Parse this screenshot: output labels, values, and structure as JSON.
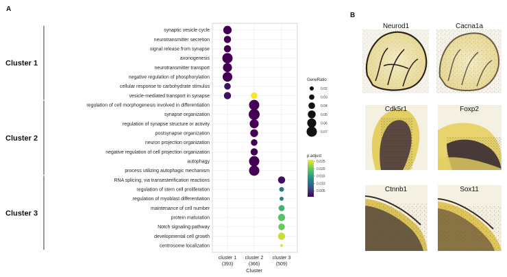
{
  "panel_a_letter": "A",
  "panel_b_letter": "B",
  "chart_data": {
    "type": "scatter",
    "title": "",
    "xlabel": "Cluster",
    "ylabel": "",
    "x_categories": [
      {
        "name": "cluster 1",
        "count": "(393)"
      },
      {
        "name": "cluster 2",
        "count": "(366)"
      },
      {
        "name": "cluster 3",
        "count": "(509)"
      }
    ],
    "terms": [
      "synaptic vesicle cycle",
      "neurotransmitter secretion",
      "signal release from synapse",
      "axonogenesis",
      "neurotransmitter transport",
      "negative regulation of phosphorylation",
      "cellular response to carbohydrate stimulus",
      "vesicle-mediated transport in synapse",
      "regulation of cell morphogenesis involved in differentiation",
      "synapse organization",
      "regulation of synapse structure or activity",
      "postsynapse organization",
      "neuron projection organization",
      "negative regulation of cell projection organization",
      "autophagy",
      "process utilizing autophagic mechanism",
      "RNA splicing, via transesterification reactions",
      "regulation of stem cell proliferation",
      "regulation of myoblast differentiation",
      "maintenance of cell number",
      "protein maturation",
      "Notch signaling pathway",
      "developmental cell growth",
      "centrosome localization"
    ],
    "points": [
      {
        "term": "synaptic vesicle cycle",
        "cluster": "cluster 1",
        "gene_ratio": 0.055,
        "p_adjust": 0.001
      },
      {
        "term": "neurotransmitter secretion",
        "cluster": "cluster 1",
        "gene_ratio": 0.045,
        "p_adjust": 0.001
      },
      {
        "term": "signal release from synapse",
        "cluster": "cluster 1",
        "gene_ratio": 0.045,
        "p_adjust": 0.001
      },
      {
        "term": "axonogenesis",
        "cluster": "cluster 1",
        "gene_ratio": 0.07,
        "p_adjust": 0.001
      },
      {
        "term": "neurotransmitter transport",
        "cluster": "cluster 1",
        "gene_ratio": 0.06,
        "p_adjust": 0.001
      },
      {
        "term": "negative regulation of phosphorylation",
        "cluster": "cluster 1",
        "gene_ratio": 0.065,
        "p_adjust": 0.001
      },
      {
        "term": "cellular response to carbohydrate stimulus",
        "cluster": "cluster 1",
        "gene_ratio": 0.04,
        "p_adjust": 0.002
      },
      {
        "term": "vesicle-mediated transport in synapse",
        "cluster": "cluster 1",
        "gene_ratio": 0.045,
        "p_adjust": 0.002
      },
      {
        "term": "vesicle-mediated transport in synapse",
        "cluster": "cluster 2",
        "gene_ratio": 0.04,
        "p_adjust": 0.026
      },
      {
        "term": "regulation of cell morphogenesis involved in differentiation",
        "cluster": "cluster 2",
        "gene_ratio": 0.07,
        "p_adjust": 0.001
      },
      {
        "term": "synapse organization",
        "cluster": "cluster 2",
        "gene_ratio": 0.075,
        "p_adjust": 0.001
      },
      {
        "term": "regulation of synapse structure or activity",
        "cluster": "cluster 2",
        "gene_ratio": 0.06,
        "p_adjust": 0.001
      },
      {
        "term": "postsynapse organization",
        "cluster": "cluster 2",
        "gene_ratio": 0.05,
        "p_adjust": 0.001
      },
      {
        "term": "neuron projection organization",
        "cluster": "cluster 2",
        "gene_ratio": 0.04,
        "p_adjust": 0.001
      },
      {
        "term": "negative regulation of cell projection organization",
        "cluster": "cluster 2",
        "gene_ratio": 0.045,
        "p_adjust": 0.001
      },
      {
        "term": "autophagy",
        "cluster": "cluster 2",
        "gene_ratio": 0.07,
        "p_adjust": 0.001
      },
      {
        "term": "process utilizing autophagic mechanism",
        "cluster": "cluster 2",
        "gene_ratio": 0.07,
        "p_adjust": 0.001
      },
      {
        "term": "RNA splicing, via transesterification reactions",
        "cluster": "cluster 3",
        "gene_ratio": 0.045,
        "p_adjust": 0.002
      },
      {
        "term": "regulation of stem cell proliferation",
        "cluster": "cluster 3",
        "gene_ratio": 0.025,
        "p_adjust": 0.011
      },
      {
        "term": "regulation of myoblast differentiation",
        "cluster": "cluster 3",
        "gene_ratio": 0.02,
        "p_adjust": 0.012
      },
      {
        "term": "maintenance of cell number",
        "cluster": "cluster 3",
        "gene_ratio": 0.035,
        "p_adjust": 0.017
      },
      {
        "term": "protein maturation",
        "cluster": "cluster 3",
        "gene_ratio": 0.045,
        "p_adjust": 0.019
      },
      {
        "term": "Notch signaling pathway",
        "cluster": "cluster 3",
        "gene_ratio": 0.04,
        "p_adjust": 0.02
      },
      {
        "term": "developmental cell growth",
        "cluster": "cluster 3",
        "gene_ratio": 0.045,
        "p_adjust": 0.024
      },
      {
        "term": "centrosome localization",
        "cluster": "cluster 3",
        "gene_ratio": 0.01,
        "p_adjust": 0.025
      }
    ],
    "size_legend": {
      "title": "GeneRatio",
      "values": [
        0.02,
        0.03,
        0.04,
        0.05,
        0.06,
        0.07
      ],
      "labels": [
        "0.02",
        "0.03",
        "0.04",
        "0.05",
        "0.06",
        "0.07"
      ]
    },
    "color_legend": {
      "title": "p.adjust",
      "range": [
        0.001,
        0.026
      ],
      "ticks": [
        0.025,
        0.02,
        0.015,
        0.01,
        0.005
      ],
      "labels": [
        "0.025",
        "0.020",
        "0.015",
        "0.010",
        "0.005"
      ]
    },
    "colormap": "viridis",
    "grid": true
  },
  "term_clusters": [
    {
      "label": "Cluster 1",
      "first_term": 0,
      "last_term": 7
    },
    {
      "label": "Cluster 2",
      "first_term": 8,
      "last_term": 15
    },
    {
      "label": "Cluster 3",
      "first_term": 16,
      "last_term": 23
    }
  ],
  "panel_b_images": [
    {
      "gene": "Neurod1",
      "section": "whole cerebellum"
    },
    {
      "gene": "Cacna1a",
      "section": "whole cerebellum"
    },
    {
      "gene": "Cdk5r1",
      "section": "lobule close-up"
    },
    {
      "gene": "Foxp2",
      "section": "lobule close-up"
    },
    {
      "gene": "Ctnnb1",
      "section": "cortex edge close-up"
    },
    {
      "gene": "Sox11",
      "section": "cortex edge close-up"
    }
  ]
}
